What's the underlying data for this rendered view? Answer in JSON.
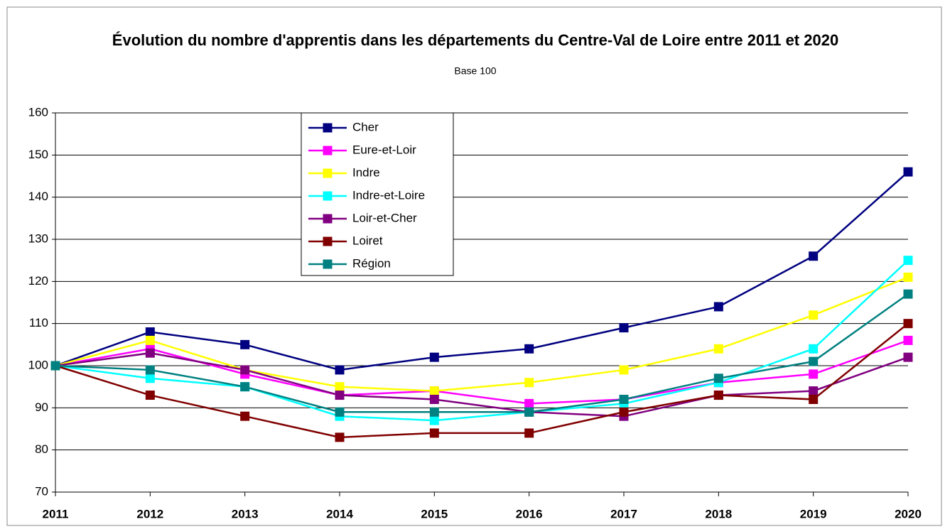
{
  "chart_data": {
    "type": "line",
    "title": "Évolution du nombre d'apprentis dans les départements du Centre-Val de Loire entre 2011 et 2020",
    "subtitle": "Base 100",
    "categories": [
      "2011",
      "2012",
      "2013",
      "2014",
      "2015",
      "2016",
      "2017",
      "2018",
      "2019",
      "2020"
    ],
    "series": [
      {
        "name": "Cher",
        "color": "#000080",
        "values": [
          100,
          108,
          105,
          99,
          102,
          104,
          109,
          114,
          126,
          146
        ]
      },
      {
        "name": "Eure-et-Loir",
        "color": "#ff00ff",
        "values": [
          100,
          104,
          98,
          93,
          94,
          91,
          92,
          96,
          98,
          106
        ]
      },
      {
        "name": "Indre",
        "color": "#ffff00",
        "values": [
          100,
          106,
          99,
          95,
          94,
          96,
          99,
          104,
          112,
          121
        ]
      },
      {
        "name": "Indre-et-Loire",
        "color": "#00ffff",
        "values": [
          100,
          97,
          95,
          88,
          87,
          89,
          91,
          96,
          104,
          125
        ]
      },
      {
        "name": "Loir-et-Cher",
        "color": "#800080",
        "values": [
          100,
          103,
          99,
          93,
          92,
          89,
          88,
          93,
          94,
          102
        ]
      },
      {
        "name": "Loiret",
        "color": "#800000",
        "values": [
          100,
          93,
          88,
          83,
          84,
          84,
          89,
          93,
          92,
          110
        ]
      },
      {
        "name": "Région",
        "color": "#008080",
        "values": [
          100,
          99,
          95,
          89,
          89,
          89,
          92,
          97,
          101,
          117
        ]
      }
    ],
    "ylim": [
      70,
      160
    ],
    "yticks": [
      70,
      80,
      90,
      100,
      110,
      120,
      130,
      140,
      150,
      160
    ],
    "grid": true
  }
}
